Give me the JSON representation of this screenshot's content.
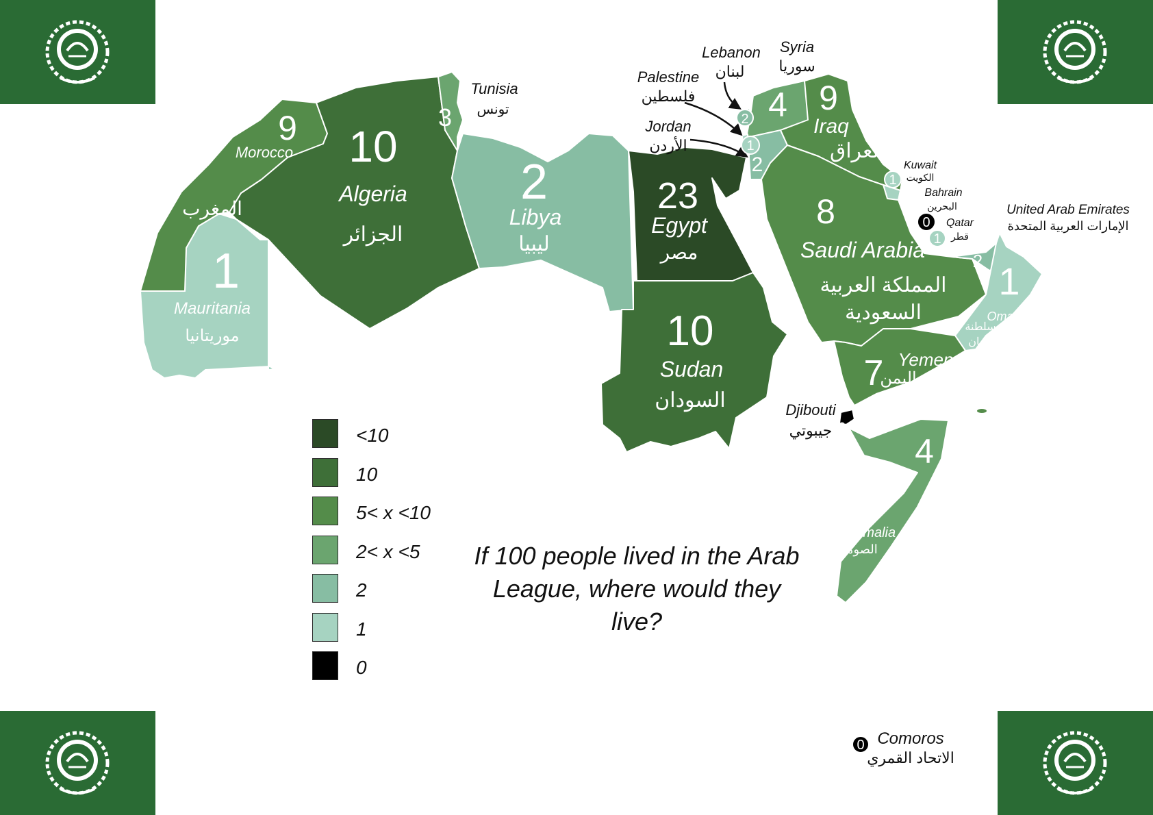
{
  "title": "If 100 people lived in the Arab League, where would they live?",
  "colors": {
    "lt10": "#2b4a26",
    "10": "#3e6f38",
    "5to10": "#548c4a",
    "2to5": "#6ba56f",
    "2": "#87bda3",
    "1": "#a6d3c1",
    "0": "#000000",
    "flag": "#2a6b34"
  },
  "legend": [
    {
      "label": "<10",
      "color": "#2b4a26"
    },
    {
      "label": "10",
      "color": "#3e6f38"
    },
    {
      "label": "5< x <10",
      "color": "#548c4a"
    },
    {
      "label": "2< x <5",
      "color": "#6ba56f"
    },
    {
      "label": "2",
      "color": "#87bda3"
    },
    {
      "label": "1",
      "color": "#a6d3c1"
    },
    {
      "label": "0",
      "color": "#000000"
    }
  ],
  "countries": {
    "morocco": {
      "value": "9",
      "en": "Morocco",
      "ar": "المغرب"
    },
    "algeria": {
      "value": "10",
      "en": "Algeria",
      "ar": "الجزائر"
    },
    "tunisia": {
      "value": "3",
      "en": "Tunisia",
      "ar": "تونس"
    },
    "libya": {
      "value": "2",
      "en": "Libya",
      "ar": "ليبيا"
    },
    "mauritania": {
      "value": "1",
      "en": "Mauritania",
      "ar": "موريتانيا"
    },
    "egypt": {
      "value": "23",
      "en": "Egypt",
      "ar": "مصر"
    },
    "sudan": {
      "value": "10",
      "en": "Sudan",
      "ar": "السودان"
    },
    "lebanon": {
      "value": "2",
      "en": "Lebanon",
      "ar": "لبنان"
    },
    "syria": {
      "value": "4",
      "en": "Syria",
      "ar": "سوريا"
    },
    "palestine": {
      "value": "1",
      "en": "Palestine",
      "ar": "فلسطين"
    },
    "jordan": {
      "value": "2",
      "en": "Jordan",
      "ar": "الأردن"
    },
    "iraq": {
      "value": "9",
      "en": "Iraq",
      "ar": "العراق"
    },
    "kuwait": {
      "value": "1",
      "en": "Kuwait",
      "ar": "الكويت"
    },
    "bahrain": {
      "value": "0",
      "en": "Bahrain",
      "ar": "البحرين"
    },
    "qatar": {
      "value": "1",
      "en": "Qatar",
      "ar": "قطر"
    },
    "uae": {
      "value": "2",
      "en": "United Arab Emirates",
      "ar": "الإمارات العربية المتحدة"
    },
    "saudi": {
      "value": "8",
      "en": "Saudi Arabia",
      "ar1": "المملكة العربية",
      "ar2": "السعودية"
    },
    "oman": {
      "value": "1",
      "en": "Oman",
      "ar1": "سلطنة",
      "ar2": "عمان"
    },
    "yemen": {
      "value": "7",
      "en": "Yemen",
      "ar": "اليمن"
    },
    "djibouti": {
      "value": "0",
      "en": "Djibouti",
      "ar": "جيبوتي"
    },
    "somalia": {
      "value": "4",
      "en": "Somalia",
      "ar": "الصومال"
    },
    "comoros": {
      "value": "0",
      "en": "Comoros",
      "ar": "الاتحاد القمري"
    }
  }
}
